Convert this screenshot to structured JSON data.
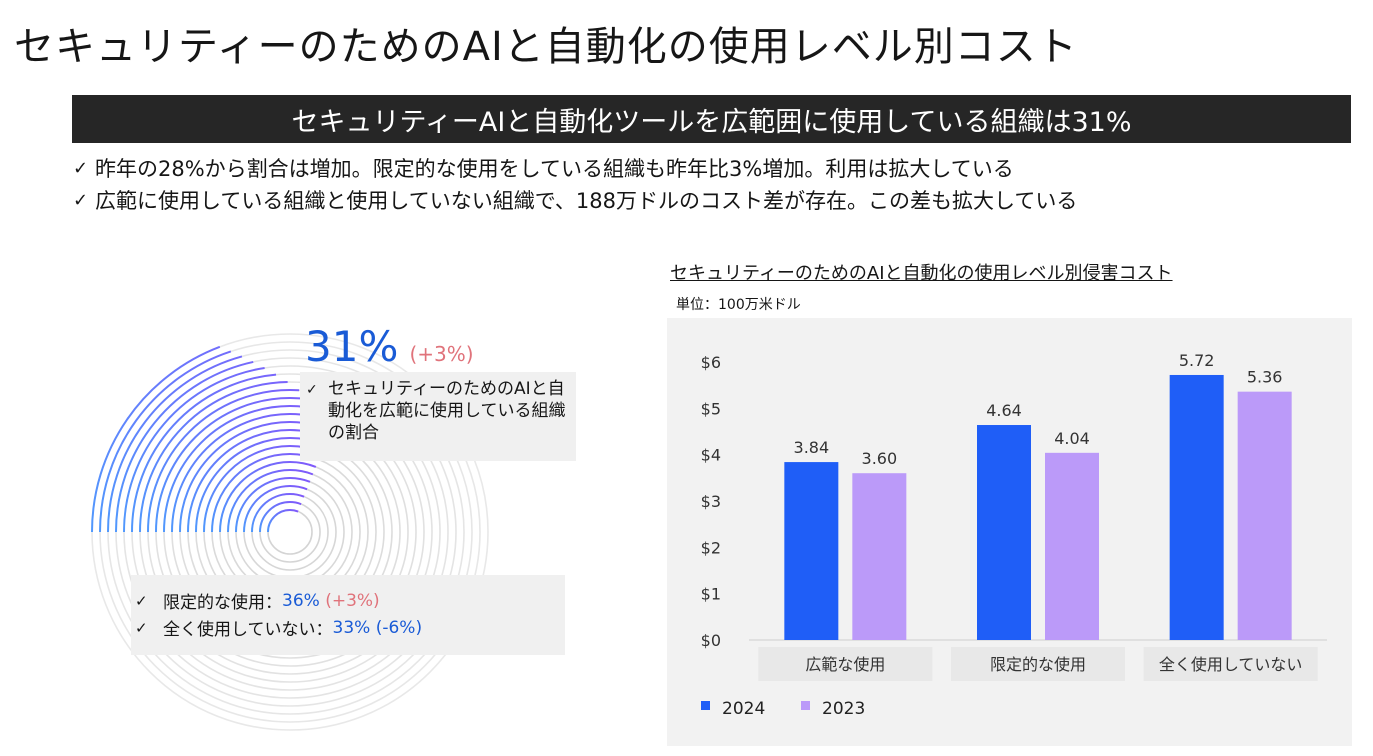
{
  "page": {
    "title": "セキュリティーのためのAIと自動化の使用レベル別コスト",
    "banner": "セキュリティーAIと自動化ツールを広範囲に使用している組織は31%",
    "bullets": [
      "昨年の28%から割合は増加。限定的な使用をしている組織も昨年比3%増加。利用は拡大している",
      "広範に使用している組織と使用していない組織で、188万ドルのコスト差が存在。この差も拡大している"
    ],
    "check_mark": "✓"
  },
  "left_panel": {
    "share_percent": "31%",
    "share_delta": "(+3%)",
    "description": "セキュリティーのためのAIと自動化を広範に使用している組織の割合",
    "limited_label": "限定的な使用：",
    "limited_value": "36%",
    "limited_delta": "(+3%)",
    "none_label": "全く使用していない：",
    "none_value": "33%",
    "none_delta": "(-6%)",
    "colors": {
      "blue": "#1a5bd6",
      "red": "#e0737b",
      "ring_gray": "#d4d4d4"
    }
  },
  "chart_data": {
    "type": "bar",
    "title": "セキュリティーのためのAIと自動化の使用レベル別侵害コスト",
    "unit_label": "単位：100万米ドル",
    "categories": [
      "広範な使用",
      "限定的な使用",
      "全く使用していない"
    ],
    "series": [
      {
        "name": "2024",
        "values": [
          3.84,
          4.64,
          5.72
        ],
        "labels": [
          "3.84",
          "4.64",
          "5.72"
        ],
        "color": "#1f5ef7"
      },
      {
        "name": "2023",
        "values": [
          3.6,
          4.04,
          5.36
        ],
        "labels": [
          "3.60",
          "4.04",
          "5.36"
        ],
        "color": "#bb9af9"
      }
    ],
    "ylim": [
      0,
      6
    ],
    "yticks": [
      0,
      1,
      2,
      3,
      4,
      5,
      6
    ],
    "ytick_labels": [
      "$0",
      "$1",
      "$2",
      "$3",
      "$4",
      "$5",
      "$6"
    ],
    "grid": false,
    "legend_position": "bottom-left"
  }
}
